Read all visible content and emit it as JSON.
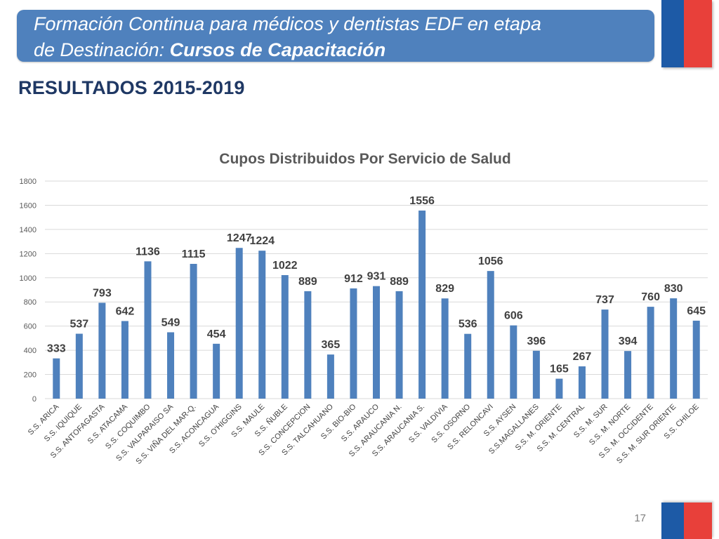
{
  "header": {
    "title_line1": "Formación Continua para médicos y dentistas EDF en etapa",
    "title_line2_prefix": "de Destinación: ",
    "title_line2_bold": "Cursos de Capacitación"
  },
  "subtitle": "RESULTADOS 2015-2019",
  "page_number": "17",
  "colors": {
    "bar": "#4f81bd",
    "banner": "#4f81bd",
    "flag_blue": "#1d5aa6",
    "flag_red": "#e8403a"
  },
  "chart_data": {
    "type": "bar",
    "title": "Cupos Distribuidos Por Servicio de Salud",
    "xlabel": "",
    "ylabel": "",
    "ylim": [
      0,
      1800
    ],
    "yticks": [
      0,
      200,
      400,
      600,
      800,
      1000,
      1200,
      1400,
      1600,
      1800
    ],
    "grid": true,
    "categories": [
      "S.S. ARICA",
      "S.S. IQUIQUE",
      "S.S. ANTOFAGASTA",
      "S.S. ATACAMA",
      "S.S. COQUIMBO",
      "S.S. VALPARAISO SA",
      "S.S. VIÑA DEL MAR-Q.",
      "S.S. ACONCAGUA",
      "S.S. O'HIGGINS",
      "S.S. MAULE",
      "S.S. ÑUBLE",
      "S.S. CONCEPCION",
      "S.S. TALCAHUANO",
      "S.S. BIO-BIO",
      "S.S. ARAUCO",
      "S.S. ARAUCANIA N.",
      "S.S. ARAUCANIA S.",
      "S.S. VALDIVIA",
      "S.S. OSORNO",
      "S.S. RELONCAVI",
      "S.S. AYSEN",
      "S.S.MAGALLANES",
      "S.S. M. ORIENTE",
      "S.S. M. CENTRAL",
      "S.S. M. SUR",
      "S.S. M. NORTE",
      "S.S. M. OCCIDENTE",
      "S.S. M. SUR ORIENTE",
      "S.S. CHILOE"
    ],
    "values": [
      333,
      537,
      793,
      642,
      1136,
      549,
      1115,
      454,
      1247,
      1224,
      1022,
      889,
      365,
      912,
      931,
      889,
      1556,
      829,
      536,
      1056,
      606,
      396,
      165,
      267,
      737,
      394,
      760,
      830,
      645
    ]
  }
}
